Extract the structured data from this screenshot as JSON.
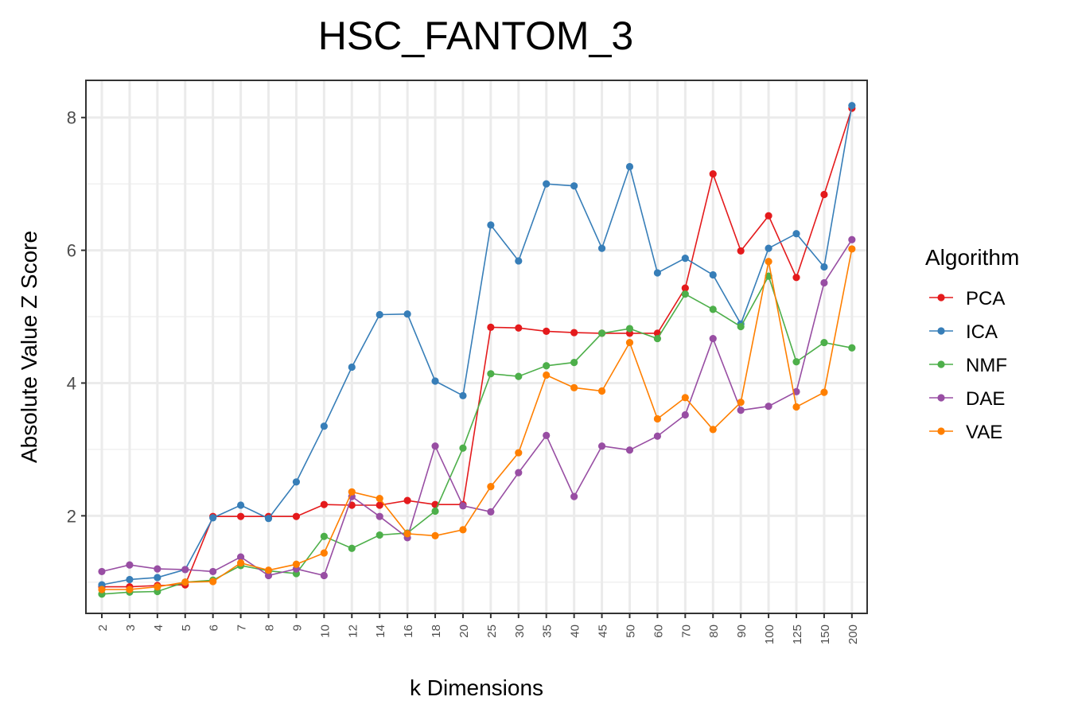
{
  "chart_data": {
    "type": "line",
    "title": "HSC_FANTOM_3",
    "xlabel": "k Dimensions",
    "ylabel": "Absolute Value Z Score",
    "categories": [
      "2",
      "3",
      "4",
      "5",
      "6",
      "7",
      "8",
      "9",
      "10",
      "12",
      "14",
      "16",
      "18",
      "20",
      "25",
      "30",
      "35",
      "40",
      "45",
      "50",
      "60",
      "70",
      "80",
      "90",
      "100",
      "125",
      "150",
      "200"
    ],
    "ylim": [
      0.53,
      8.56
    ],
    "yticks": [
      2,
      4,
      6,
      8
    ],
    "grid": true,
    "legend": {
      "title": "Algorithm",
      "position": "right"
    },
    "series": [
      {
        "name": "PCA",
        "color": "#e41a1c",
        "values": [
          0.93,
          0.93,
          0.95,
          0.96,
          1.99,
          1.99,
          1.99,
          1.99,
          2.17,
          2.16,
          2.16,
          2.23,
          2.17,
          2.17,
          4.84,
          4.83,
          4.78,
          4.76,
          4.75,
          4.75,
          4.75,
          5.43,
          7.15,
          5.99,
          6.52,
          5.59,
          6.84,
          8.14
        ]
      },
      {
        "name": "ICA",
        "color": "#377eb8",
        "values": [
          0.96,
          1.04,
          1.07,
          1.19,
          1.97,
          2.16,
          1.96,
          2.51,
          3.35,
          4.24,
          5.03,
          5.04,
          4.03,
          3.81,
          6.38,
          5.84,
          7.0,
          6.97,
          6.03,
          7.26,
          5.66,
          5.88,
          5.63,
          4.89,
          6.03,
          6.25,
          5.75,
          8.18
        ]
      },
      {
        "name": "NMF",
        "color": "#4daf4a",
        "values": [
          0.82,
          0.85,
          0.86,
          1.0,
          1.03,
          1.25,
          1.17,
          1.13,
          1.69,
          1.51,
          1.71,
          1.74,
          2.07,
          3.02,
          4.14,
          4.1,
          4.26,
          4.31,
          4.75,
          4.82,
          4.67,
          5.34,
          5.11,
          4.85,
          5.61,
          4.32,
          4.61,
          4.53
        ]
      },
      {
        "name": "DAE",
        "color": "#984ea3",
        "values": [
          1.16,
          1.26,
          1.2,
          1.19,
          1.16,
          1.38,
          1.1,
          1.2,
          1.1,
          2.29,
          1.99,
          1.67,
          3.05,
          2.15,
          2.06,
          2.65,
          3.21,
          2.29,
          3.05,
          2.99,
          3.2,
          3.52,
          4.67,
          3.59,
          3.65,
          3.87,
          5.51,
          6.16
        ]
      },
      {
        "name": "VAE",
        "color": "#ff7f00",
        "values": [
          0.89,
          0.89,
          0.93,
          1.0,
          1.01,
          1.29,
          1.18,
          1.27,
          1.44,
          2.36,
          2.26,
          1.73,
          1.7,
          1.79,
          2.44,
          2.95,
          4.12,
          3.93,
          3.88,
          4.61,
          3.46,
          3.78,
          3.3,
          3.71,
          5.83,
          3.64,
          3.86,
          6.02
        ]
      }
    ]
  }
}
